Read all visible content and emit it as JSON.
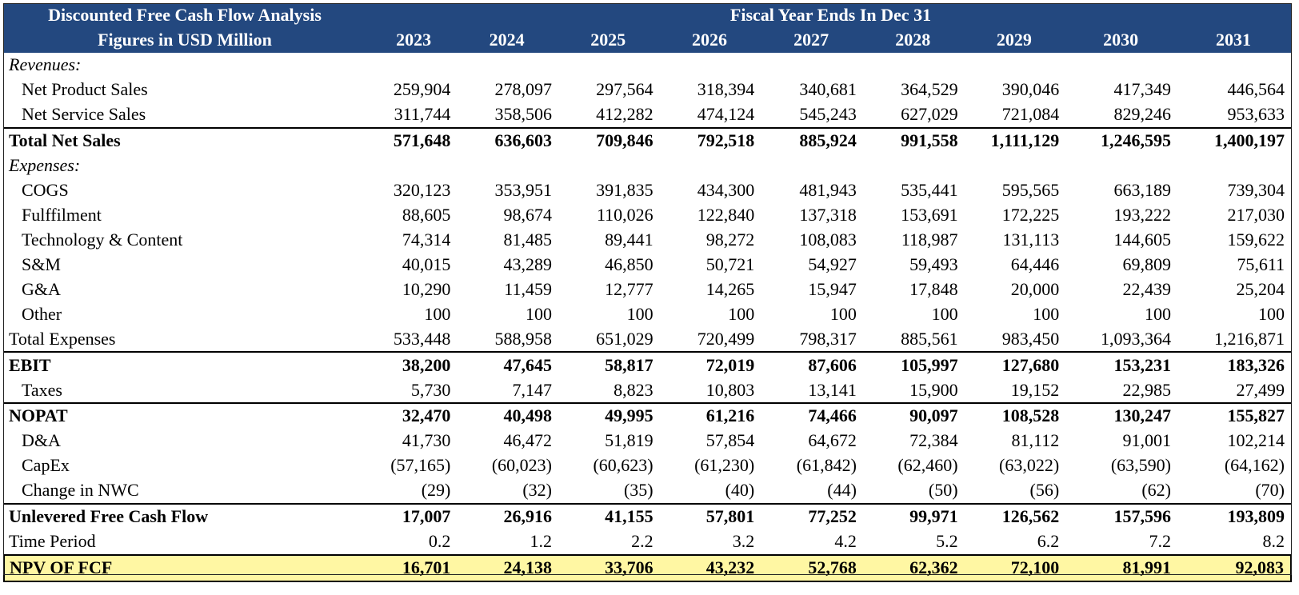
{
  "header": {
    "title": "Discounted Free Cash Flow Analysis",
    "fiscal": "Fiscal Year Ends In Dec 31",
    "units": "Figures in USD Million",
    "years": [
      "2023",
      "2024",
      "2025",
      "2026",
      "2027",
      "2028",
      "2029",
      "2030",
      "2031"
    ]
  },
  "sections": {
    "revenues": "Revenues:",
    "expenses": "Expenses:"
  },
  "rows": {
    "net_product_sales": {
      "label": "Net Product Sales",
      "values": [
        "259,904",
        "278,097",
        "297,564",
        "318,394",
        "340,681",
        "364,529",
        "390,046",
        "417,349",
        "446,564"
      ]
    },
    "net_service_sales": {
      "label": "Net Service Sales",
      "values": [
        "311,744",
        "358,506",
        "412,282",
        "474,124",
        "545,243",
        "627,029",
        "721,084",
        "829,246",
        "953,633"
      ]
    },
    "total_net_sales": {
      "label": "Total Net Sales",
      "values": [
        "571,648",
        "636,603",
        "709,846",
        "792,518",
        "885,924",
        "991,558",
        "1,111,129",
        "1,246,595",
        "1,400,197"
      ]
    },
    "cogs": {
      "label": "COGS",
      "values": [
        "320,123",
        "353,951",
        "391,835",
        "434,300",
        "481,943",
        "535,441",
        "595,565",
        "663,189",
        "739,304"
      ]
    },
    "fulfillment": {
      "label": "Fulffilment",
      "values": [
        "88,605",
        "98,674",
        "110,026",
        "122,840",
        "137,318",
        "153,691",
        "172,225",
        "193,222",
        "217,030"
      ]
    },
    "tech_content": {
      "label": "Technology & Content",
      "values": [
        "74,314",
        "81,485",
        "89,441",
        "98,272",
        "108,083",
        "118,987",
        "131,113",
        "144,605",
        "159,622"
      ]
    },
    "sm": {
      "label": "S&M",
      "values": [
        "40,015",
        "43,289",
        "46,850",
        "50,721",
        "54,927",
        "59,493",
        "64,446",
        "69,809",
        "75,611"
      ]
    },
    "ga": {
      "label": "G&A",
      "values": [
        "10,290",
        "11,459",
        "12,777",
        "14,265",
        "15,947",
        "17,848",
        "20,000",
        "22,439",
        "25,204"
      ]
    },
    "other": {
      "label": "Other",
      "values": [
        "100",
        "100",
        "100",
        "100",
        "100",
        "100",
        "100",
        "100",
        "100"
      ]
    },
    "total_expenses": {
      "label": "Total Expenses",
      "values": [
        "533,448",
        "588,958",
        "651,029",
        "720,499",
        "798,317",
        "885,561",
        "983,450",
        "1,093,364",
        "1,216,871"
      ]
    },
    "ebit": {
      "label": "EBIT",
      "values": [
        "38,200",
        "47,645",
        "58,817",
        "72,019",
        "87,606",
        "105,997",
        "127,680",
        "153,231",
        "183,326"
      ]
    },
    "taxes": {
      "label": "Taxes",
      "values": [
        "5,730",
        "7,147",
        "8,823",
        "10,803",
        "13,141",
        "15,900",
        "19,152",
        "22,985",
        "27,499"
      ]
    },
    "nopat": {
      "label": "NOPAT",
      "values": [
        "32,470",
        "40,498",
        "49,995",
        "61,216",
        "74,466",
        "90,097",
        "108,528",
        "130,247",
        "155,827"
      ]
    },
    "da": {
      "label": "D&A",
      "values": [
        "41,730",
        "46,472",
        "51,819",
        "57,854",
        "64,672",
        "72,384",
        "81,112",
        "91,001",
        "102,214"
      ]
    },
    "capex": {
      "label": "CapEx",
      "values": [
        "(57,165)",
        "(60,023)",
        "(60,623)",
        "(61,230)",
        "(61,842)",
        "(62,460)",
        "(63,022)",
        "(63,590)",
        "(64,162)"
      ]
    },
    "nwc": {
      "label": "Change in NWC",
      "values": [
        "(29)",
        "(32)",
        "(35)",
        "(40)",
        "(44)",
        "(50)",
        "(56)",
        "(62)",
        "(70)"
      ]
    },
    "ufcf": {
      "label": "Unlevered Free Cash Flow",
      "values": [
        "17,007",
        "26,916",
        "41,155",
        "57,801",
        "77,252",
        "99,971",
        "126,562",
        "157,596",
        "193,809"
      ]
    },
    "time_period": {
      "label": "Time Period",
      "values": [
        "0.2",
        "1.2",
        "2.2",
        "3.2",
        "4.2",
        "5.2",
        "6.2",
        "7.2",
        "8.2"
      ]
    },
    "npv": {
      "label": "NPV OF FCF",
      "values": [
        "16,701",
        "24,138",
        "33,706",
        "43,232",
        "52,768",
        "62,362",
        "72,100",
        "81,991",
        "92,083"
      ]
    }
  },
  "colors": {
    "header_bg": "#23487f",
    "header_text": "#ffffff",
    "npv_bg": "#fff7a3"
  }
}
